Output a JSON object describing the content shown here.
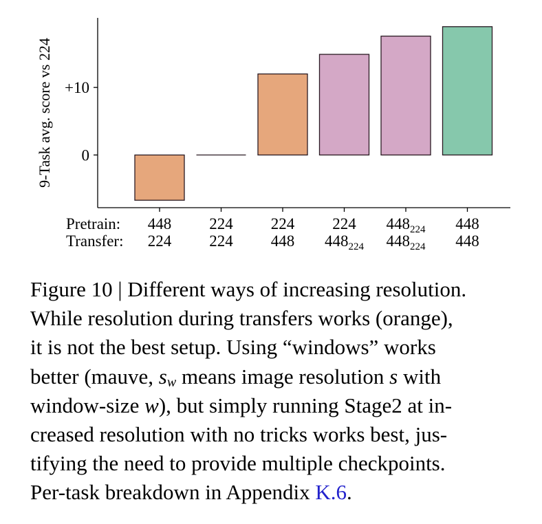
{
  "chart_data": {
    "type": "bar",
    "ylabel": "9-Task avg. score vs 224",
    "yticks": [
      {
        "value": 10,
        "label": "+10"
      },
      {
        "value": 0,
        "label": "0"
      }
    ],
    "ylim": [
      -7.8,
      20.3
    ],
    "row_headers": [
      "Pretrain:",
      "Transfer:"
    ],
    "bars": [
      {
        "pretrain": "448",
        "pretrain_sub": "",
        "transfer": "224",
        "transfer_sub": "",
        "value": -6.7,
        "color": "#e6a77c"
      },
      {
        "pretrain": "224",
        "pretrain_sub": "",
        "transfer": "224",
        "transfer_sub": "",
        "value": 0,
        "color": "#e6a77c"
      },
      {
        "pretrain": "224",
        "pretrain_sub": "",
        "transfer": "448",
        "transfer_sub": "",
        "value": 12,
        "color": "#e6a77c"
      },
      {
        "pretrain": "224",
        "pretrain_sub": "",
        "transfer": "448",
        "transfer_sub": "224",
        "value": 14.9,
        "color": "#d4a8c6"
      },
      {
        "pretrain": "448",
        "pretrain_sub": "224",
        "transfer": "448",
        "transfer_sub": "224",
        "value": 17.6,
        "color": "#d4a8c6"
      },
      {
        "pretrain": "448",
        "pretrain_sub": "",
        "transfer": "448",
        "transfer_sub": "",
        "value": 19.0,
        "color": "#86c8ac"
      }
    ]
  },
  "caption": {
    "figure_label": "Figure 10 | Different ways of increasing resolution.",
    "l2": "While resolution during transfers works (orange),",
    "l3": "it is not the best setup. Using “windows” works",
    "l4_a": "better (mauve, ",
    "l4_s": "s",
    "l4_w": "w",
    "l4_b": " means image resolution ",
    "l4_s2": "s",
    "l4_c": " with",
    "l5_a": "window-size ",
    "l5_w": "w",
    "l5_b": "), but simply running Stage2 at in-",
    "l6": "creased resolution with no tricks works best, jus-",
    "l7": "tifying the need to provide multiple checkpoints.",
    "l8_a": "Per-task breakdown in Appendix ",
    "l8_ref": "K.6",
    "l8_b": "."
  }
}
